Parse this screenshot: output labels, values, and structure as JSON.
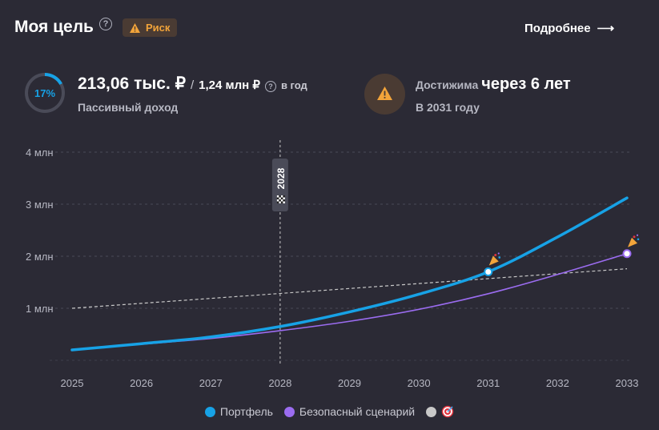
{
  "header": {
    "title": "Моя цель",
    "help_glyph": "?",
    "risk_label": "Риск",
    "more_label": "Подробнее",
    "more_arrow": "⟶"
  },
  "income": {
    "progress_percent": 17,
    "progress_label": "17%",
    "current": "213,06 тыс. ₽",
    "slash": "/",
    "target": "1,24 млн ₽",
    "target_help": "?",
    "period": "в год",
    "subtitle": "Пассивный доход"
  },
  "goal": {
    "label": "Достижима",
    "value": "через 6 лет",
    "subtitle": "В 2031 году",
    "icon": "warning-icon"
  },
  "colors": {
    "portfolio": "#17a2e6",
    "safe": "#9b6cf0",
    "goal_line": "#c8c8c8",
    "risk": "#f2a43a",
    "background": "#2b2a35"
  },
  "chart_data": {
    "type": "line",
    "x": [
      2025,
      2026,
      2027,
      2028,
      2029,
      2030,
      2031,
      2032,
      2033
    ],
    "xlim": [
      2025,
      2033
    ],
    "ylim": [
      0,
      4
    ],
    "ytick_values": [
      1,
      2,
      3,
      4
    ],
    "ytick_labels": [
      "1 млн",
      "2 млн",
      "3 млн",
      "4 млн"
    ],
    "xtick_labels": [
      "2025",
      "2026",
      "2027",
      "2028",
      "2029",
      "2030",
      "2031",
      "2032",
      "2033"
    ],
    "grid": true,
    "legend_position": "bottom",
    "marker_year": 2028,
    "marker_label": "2028",
    "series": [
      {
        "name": "Портфель",
        "values": [
          0.2,
          0.32,
          0.45,
          0.65,
          0.93,
          1.27,
          1.7,
          2.37,
          3.12
        ],
        "color": "#17a2e6"
      },
      {
        "name": "Безопасный сценарий",
        "values": [
          0.2,
          0.31,
          0.42,
          0.57,
          0.75,
          0.98,
          1.28,
          1.65,
          2.05
        ],
        "color": "#9b6cf0"
      },
      {
        "name": "",
        "values": [
          1.0,
          1.1,
          1.19,
          1.28,
          1.38,
          1.48,
          1.57,
          1.67,
          1.76
        ],
        "color": "#c8c8c8"
      }
    ],
    "milestones": [
      {
        "series": 0,
        "year": 2031,
        "value": 1.7
      },
      {
        "series": 1,
        "year": 2033,
        "value": 2.05
      }
    ]
  }
}
